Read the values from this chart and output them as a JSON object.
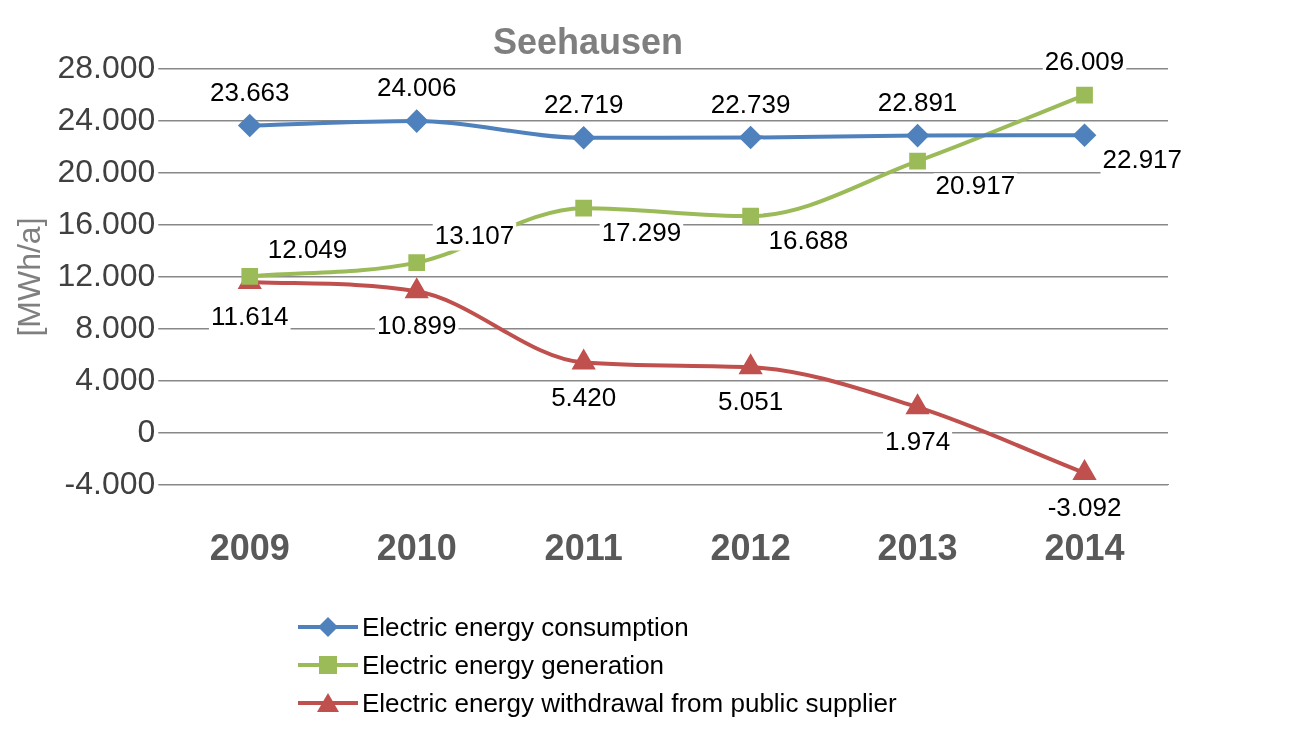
{
  "chart_data": {
    "type": "line",
    "title": "Seehausen",
    "ylabel": "[MWh/a]",
    "categories": [
      "2009",
      "2010",
      "2011",
      "2012",
      "2013",
      "2014"
    ],
    "series": [
      {
        "name": "Electric energy consumption",
        "color": "#4f81bd",
        "marker": "diamond",
        "values": [
          23663,
          24006,
          22719,
          22739,
          22891,
          22917
        ],
        "value_labels": [
          "23.663",
          "24.006",
          "22.719",
          "22.739",
          "22.891",
          "22.917"
        ]
      },
      {
        "name": "Electric energy generation",
        "color": "#9bbb59",
        "marker": "square",
        "values": [
          12049,
          13107,
          17299,
          16688,
          20917,
          26009
        ],
        "value_labels": [
          "12.049",
          "13.107",
          "17.299",
          "16.688",
          "20.917",
          "26.009"
        ]
      },
      {
        "name": "Electric energy withdrawal from public supplier",
        "color": "#c0504d",
        "marker": "triangle",
        "values": [
          11614,
          10899,
          5420,
          5051,
          1974,
          -3092
        ],
        "value_labels": [
          "11.614",
          "10.899",
          "5.420",
          "5.051",
          "1.974",
          "-3.092"
        ]
      }
    ],
    "ylim": [
      -4000,
      28000
    ],
    "yticks": [
      {
        "value": -4000,
        "label": "-4.000"
      },
      {
        "value": 0,
        "label": "0"
      },
      {
        "value": 4000,
        "label": "4.000"
      },
      {
        "value": 8000,
        "label": "8.000"
      },
      {
        "value": 12000,
        "label": "12.000"
      },
      {
        "value": 16000,
        "label": "16.000"
      },
      {
        "value": 20000,
        "label": "20.000"
      },
      {
        "value": 24000,
        "label": "24.000"
      },
      {
        "value": 28000,
        "label": "28.000"
      }
    ],
    "grid": "y",
    "legend": "bottom"
  }
}
